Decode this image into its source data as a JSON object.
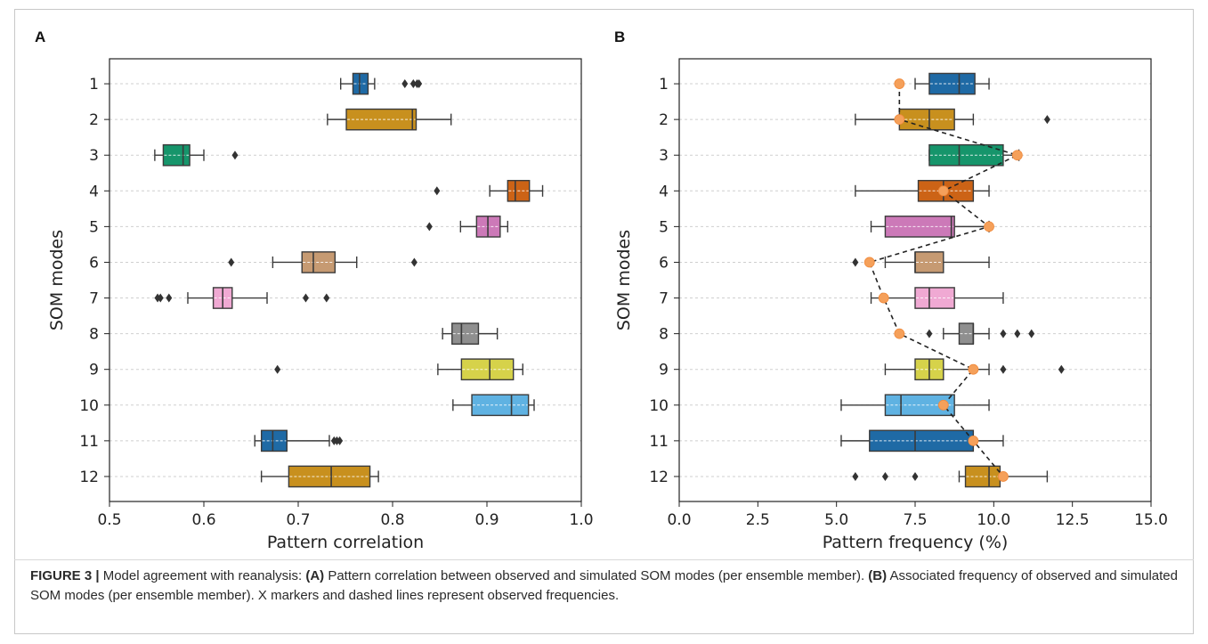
{
  "caption": {
    "label": "FIGURE 3 |",
    "intro": " Model agreement with reanalysis: ",
    "part_a_label": "(A)",
    "part_a_text": " Pattern correlation between observed and simulated SOM modes (per ensemble member). ",
    "part_b_label": "(B)",
    "part_b_text": " Associated frequency of observed and simulated SOM modes (per ensemble member). X markers and dashed lines represent observed frequencies."
  },
  "colors": {
    "palette": [
      "#1f6aa5",
      "#c8901e",
      "#16956b",
      "#cc6316",
      "#cc79b8",
      "#c69a72",
      "#f0a9d3",
      "#8f8f8f",
      "#d6d24a",
      "#5fb2e2",
      "#1f6aa5",
      "#c8901e"
    ],
    "observed_marker": "#f5a05a",
    "observed_line": "#222222"
  },
  "chart_data": [
    {
      "type": "box",
      "panel": "A",
      "xlabel": "Pattern correlation",
      "ylabel": "SOM modes",
      "xlim": [
        0.5,
        1.0
      ],
      "xticks": [
        "0.5",
        "0.6",
        "0.7",
        "0.8",
        "0.9",
        "1.0"
      ],
      "categories": [
        "1",
        "2",
        "3",
        "4",
        "5",
        "6",
        "7",
        "8",
        "9",
        "10",
        "11",
        "12"
      ],
      "grid": "horizontal dashed",
      "boxes": [
        {
          "whislo": 0.745,
          "q1": 0.758,
          "med": 0.765,
          "q3": 0.774,
          "whishi": 0.781,
          "fliers": [
            0.813,
            0.822,
            0.826,
            0.828
          ]
        },
        {
          "whislo": 0.731,
          "q1": 0.751,
          "med": 0.821,
          "q3": 0.825,
          "whishi": 0.862,
          "fliers": []
        },
        {
          "whislo": 0.548,
          "q1": 0.557,
          "med": 0.578,
          "q3": 0.585,
          "whishi": 0.6,
          "fliers": [
            0.633
          ]
        },
        {
          "whislo": 0.903,
          "q1": 0.922,
          "med": 0.93,
          "q3": 0.945,
          "whishi": 0.959,
          "fliers": [
            0.847
          ]
        },
        {
          "whislo": 0.872,
          "q1": 0.889,
          "med": 0.901,
          "q3": 0.914,
          "whishi": 0.922,
          "fliers": [
            0.839
          ]
        },
        {
          "whislo": 0.673,
          "q1": 0.704,
          "med": 0.716,
          "q3": 0.739,
          "whishi": 0.762,
          "fliers": [
            0.629,
            0.823
          ]
        },
        {
          "whislo": 0.583,
          "q1": 0.61,
          "med": 0.62,
          "q3": 0.63,
          "whishi": 0.667,
          "fliers": [
            0.551,
            0.554,
            0.563,
            0.708,
            0.73
          ]
        },
        {
          "whislo": 0.853,
          "q1": 0.863,
          "med": 0.873,
          "q3": 0.891,
          "whishi": 0.911,
          "fliers": []
        },
        {
          "whislo": 0.848,
          "q1": 0.873,
          "med": 0.903,
          "q3": 0.928,
          "whishi": 0.938,
          "fliers": [
            0.678
          ]
        },
        {
          "whislo": 0.864,
          "q1": 0.884,
          "med": 0.926,
          "q3": 0.944,
          "whishi": 0.95,
          "fliers": []
        },
        {
          "whislo": 0.654,
          "q1": 0.661,
          "med": 0.673,
          "q3": 0.688,
          "whishi": 0.733,
          "fliers": [
            0.738,
            0.741,
            0.744
          ]
        },
        {
          "whislo": 0.661,
          "q1": 0.69,
          "med": 0.735,
          "q3": 0.776,
          "whishi": 0.785,
          "fliers": []
        }
      ]
    },
    {
      "type": "box",
      "panel": "B",
      "xlabel": "Pattern frequency (%)",
      "ylabel": "SOM modes",
      "xlim": [
        0.0,
        15.0
      ],
      "xticks": [
        "0.0",
        "2.5",
        "5.0",
        "7.5",
        "10.0",
        "12.5",
        "15.0"
      ],
      "categories": [
        "1",
        "2",
        "3",
        "4",
        "5",
        "6",
        "7",
        "8",
        "9",
        "10",
        "11",
        "12"
      ],
      "grid": "horizontal dashed",
      "boxes": [
        {
          "whislo": 7.5,
          "q1": 7.95,
          "med": 8.9,
          "q3": 9.4,
          "whishi": 9.85,
          "fliers": []
        },
        {
          "whislo": 5.6,
          "q1": 7.0,
          "med": 7.95,
          "q3": 8.75,
          "whishi": 9.35,
          "fliers": [
            11.7
          ]
        },
        {
          "whislo": 7.95,
          "q1": 7.95,
          "med": 8.9,
          "q3": 10.3,
          "whishi": 10.8,
          "fliers": []
        },
        {
          "whislo": 5.6,
          "q1": 7.6,
          "med": 8.4,
          "q3": 9.35,
          "whishi": 9.85,
          "fliers": []
        },
        {
          "whislo": 6.1,
          "q1": 6.55,
          "med": 8.65,
          "q3": 8.75,
          "whishi": 9.85,
          "fliers": []
        },
        {
          "whislo": 6.55,
          "q1": 7.5,
          "med": 7.5,
          "q3": 8.4,
          "whishi": 9.85,
          "fliers": [
            5.6
          ]
        },
        {
          "whislo": 6.1,
          "q1": 7.5,
          "med": 7.95,
          "q3": 8.75,
          "whishi": 10.3,
          "fliers": []
        },
        {
          "whislo": 8.4,
          "q1": 8.9,
          "med": 9.35,
          "q3": 9.35,
          "whishi": 9.85,
          "fliers": [
            7.95,
            10.3,
            10.75,
            11.2
          ]
        },
        {
          "whislo": 6.55,
          "q1": 7.5,
          "med": 7.95,
          "q3": 8.4,
          "whishi": 9.85,
          "fliers": [
            10.3,
            12.15
          ]
        },
        {
          "whislo": 5.15,
          "q1": 6.55,
          "med": 7.05,
          "q3": 8.75,
          "whishi": 9.85,
          "fliers": []
        },
        {
          "whislo": 5.15,
          "q1": 6.05,
          "med": 7.5,
          "q3": 9.35,
          "whishi": 10.3,
          "fliers": []
        },
        {
          "whislo": 8.9,
          "q1": 9.1,
          "med": 9.85,
          "q3": 10.2,
          "whishi": 11.7,
          "fliers": [
            5.6,
            6.55,
            7.5
          ]
        }
      ],
      "observed": [
        7.0,
        7.0,
        10.75,
        8.4,
        9.85,
        6.05,
        6.5,
        7.0,
        9.35,
        8.4,
        9.35,
        10.3
      ]
    }
  ]
}
